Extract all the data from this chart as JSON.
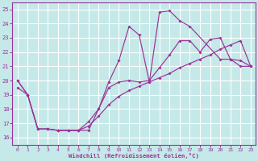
{
  "xlabel": "Windchill (Refroidissement éolien,°C)",
  "bg_color": "#c5e8e8",
  "grid_color": "#ffffff",
  "line_color": "#993399",
  "ylim": [
    15.5,
    25.5
  ],
  "xlim": [
    -0.5,
    23.5
  ],
  "yticks": [
    16,
    17,
    18,
    19,
    20,
    21,
    22,
    23,
    24,
    25
  ],
  "xticks": [
    0,
    1,
    2,
    3,
    4,
    5,
    6,
    7,
    8,
    9,
    10,
    11,
    12,
    13,
    14,
    15,
    16,
    17,
    18,
    19,
    20,
    21,
    22,
    23
  ],
  "curve_spiky_x": [
    0,
    1,
    2,
    3,
    4,
    5,
    6,
    7,
    8,
    9,
    10,
    11,
    12,
    13,
    14,
    15,
    16,
    17,
    20,
    21,
    22,
    23
  ],
  "curve_spiky_y": [
    20.0,
    19.0,
    16.6,
    16.6,
    16.5,
    16.5,
    16.5,
    17.1,
    18.0,
    19.9,
    21.4,
    23.8,
    23.2,
    19.9,
    24.8,
    24.9,
    24.2,
    23.8,
    21.5,
    21.5,
    21.0,
    21.0
  ],
  "curve_mid_x": [
    0,
    1,
    2,
    3,
    4,
    5,
    6,
    7,
    8,
    9,
    10,
    11,
    12,
    13,
    14,
    15,
    16,
    17,
    18,
    19,
    20,
    21,
    22,
    23
  ],
  "curve_mid_y": [
    19.5,
    19.0,
    16.6,
    16.6,
    16.5,
    16.5,
    16.5,
    16.8,
    17.5,
    18.3,
    18.9,
    19.3,
    19.6,
    19.9,
    20.2,
    20.5,
    20.9,
    21.2,
    21.5,
    21.8,
    22.2,
    22.5,
    22.8,
    21.0
  ],
  "curve_bot_x": [
    0,
    1,
    2,
    3,
    4,
    5,
    6,
    7,
    8,
    9,
    10,
    11,
    12,
    13,
    14,
    15,
    16,
    17,
    18,
    19,
    20,
    21,
    22,
    23
  ],
  "curve_bot_y": [
    20.0,
    19.0,
    16.6,
    16.6,
    16.5,
    16.5,
    16.5,
    16.5,
    18.0,
    19.5,
    19.9,
    20.0,
    19.9,
    20.0,
    20.9,
    21.8,
    22.8,
    22.8,
    22.0,
    22.9,
    23.0,
    21.5,
    21.4,
    21.0
  ]
}
